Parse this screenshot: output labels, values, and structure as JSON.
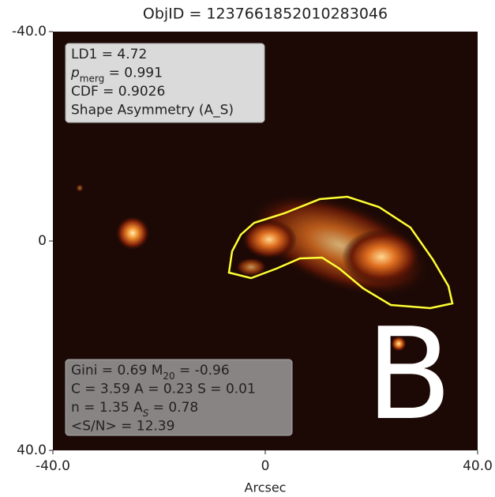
{
  "chart_data": {
    "type": "image",
    "title": "ObjID = 1237661852010283046",
    "xlabel": "Arcsec",
    "xlim": [
      -40,
      40
    ],
    "ylim": [
      -40,
      40
    ],
    "xticks": [
      {
        "value": -40,
        "label": "-40.0"
      },
      0,
      {
        "value": 40,
        "label": "40.0"
      }
    ],
    "yticks": [
      {
        "value": -40,
        "label": "-40.0"
      },
      0,
      {
        "value": 40,
        "label": "40.0"
      }
    ],
    "contour_color": "#ffff33",
    "annotations": [
      {
        "lines": [
          [
            {
              "text": "LD1 = 4.72"
            }
          ],
          [
            {
              "text": "p",
              "italic": true
            },
            {
              "text": "merg",
              "sub": true
            },
            {
              "text": " = 0.991"
            }
          ],
          [
            {
              "text": "CDF = 0.9026"
            }
          ],
          [
            {
              "text": "Shape Asymmetry (A_S)"
            }
          ]
        ]
      },
      {
        "lines": [
          [
            {
              "text": "Gini = 0.69 M"
            },
            {
              "text": "20",
              "sub": true
            },
            {
              "text": " = -0.96"
            }
          ],
          [
            {
              "text": "C = 3.59 A = 0.23 S = 0.01"
            }
          ],
          [
            {
              "text": "n = 1.35 A"
            },
            {
              "text": "S",
              "sub": true,
              "italic": true
            },
            {
              "text": " = 0.78"
            }
          ],
          [
            {
              "text": "<S/N> = 12.39"
            }
          ]
        ]
      }
    ],
    "label": "B"
  }
}
